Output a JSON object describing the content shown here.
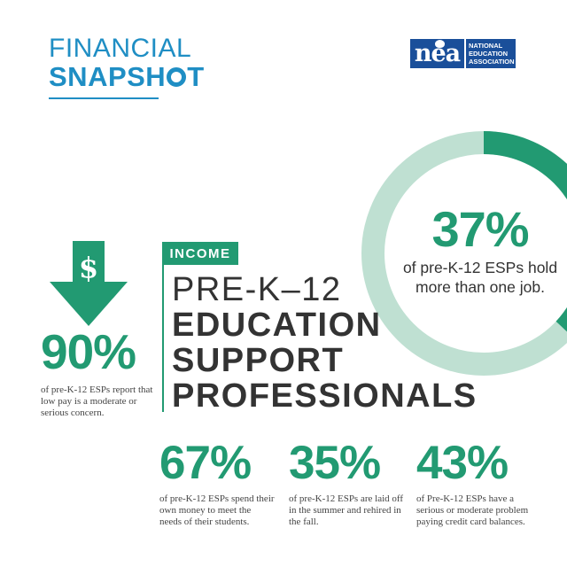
{
  "header": {
    "title_line1": "FINANCIAL",
    "title_line2_prefix": "SNAPSH",
    "title_line2_suffix": "T",
    "colors": {
      "brand_blue": "#1f8ec4"
    }
  },
  "logo": {
    "mark": "nea",
    "line1": "NATIONAL",
    "line2": "EDUCATION",
    "line3": "ASSOCIATION",
    "color": "#1a4f9a"
  },
  "donut": {
    "value_percent": 37,
    "pct_label": "37%",
    "description": "of pre-K-12 ESPs hold more than one job.",
    "colors": {
      "filled": "#229a72",
      "remaining": "#bfe0d2"
    }
  },
  "left_stat": {
    "icon": "dollar-down-arrow-icon",
    "pct": "90%",
    "description": "of pre-K-12 ESPs report that low pay is a moderate or serious concern."
  },
  "section": {
    "badge": "INCOME",
    "heading_line1": "PRE-K–12",
    "heading_line2": "EDUCATION",
    "heading_line3": "SUPPORT",
    "heading_line4": "PROFESSIONALS"
  },
  "bottom_stats": [
    {
      "pct": "67%",
      "description": "of pre-K-12 ESPs spend their own money to meet the needs of their students."
    },
    {
      "pct": "35%",
      "description": "of pre-K-12 ESPs are laid off in the summer and rehired in the fall."
    },
    {
      "pct": "43%",
      "description": "of Pre-K-12 ESPs have a serious or moderate problem paying credit card balances."
    }
  ],
  "accent_color": "#229a72"
}
